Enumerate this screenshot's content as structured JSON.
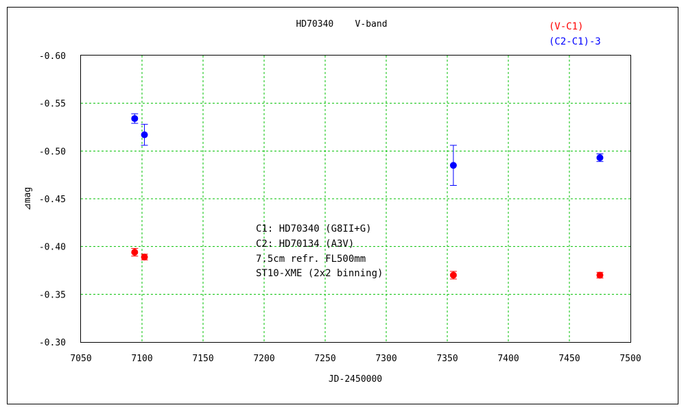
{
  "chart_data": {
    "type": "scatter",
    "title": "HD70340    V-band",
    "xlabel": "JD-2450000",
    "ylabel": "⊿mag",
    "xlim": [
      7050,
      7500
    ],
    "ylim": [
      -0.6,
      -0.3
    ],
    "y_inverted": true,
    "x_ticks": [
      7050,
      7100,
      7150,
      7200,
      7250,
      7300,
      7350,
      7400,
      7450,
      7500
    ],
    "y_ticks": [
      -0.6,
      -0.55,
      -0.5,
      -0.45,
      -0.4,
      -0.35,
      -0.3
    ],
    "x_tick_labels": [
      "7050",
      "7100",
      "7150",
      "7200",
      "7250",
      "7300",
      "7350",
      "7400",
      "7450",
      "7500"
    ],
    "y_tick_labels": [
      "-0.60",
      "-0.55",
      "-0.50",
      "-0.45",
      "-0.40",
      "-0.35",
      "-0.30"
    ],
    "grid": true,
    "grid_color": "#00c000",
    "legend_position": "top-right",
    "series": [
      {
        "name": "(V-C1)",
        "color": "#ff0000",
        "points": [
          {
            "x": 7094,
            "y": -0.394,
            "err": 0.004
          },
          {
            "x": 7102,
            "y": -0.389,
            "err": 0.003
          },
          {
            "x": 7355,
            "y": -0.37,
            "err": 0.004
          },
          {
            "x": 7475,
            "y": -0.37,
            "err": 0.003
          }
        ]
      },
      {
        "name": "(C2-C1)-3",
        "color": "#0000ff",
        "points": [
          {
            "x": 7094,
            "y": -0.534,
            "err": 0.005
          },
          {
            "x": 7102,
            "y": -0.517,
            "err": 0.011
          },
          {
            "x": 7355,
            "y": -0.485,
            "err": 0.021
          },
          {
            "x": 7475,
            "y": -0.493,
            "err": 0.004
          }
        ]
      }
    ],
    "annotations": [
      "C1: HD70340 (G8II+G)",
      "C2: HD70134 (A3V)",
      "7.5cm refr. FL500mm",
      "ST10-XME (2x2 binning)"
    ]
  }
}
